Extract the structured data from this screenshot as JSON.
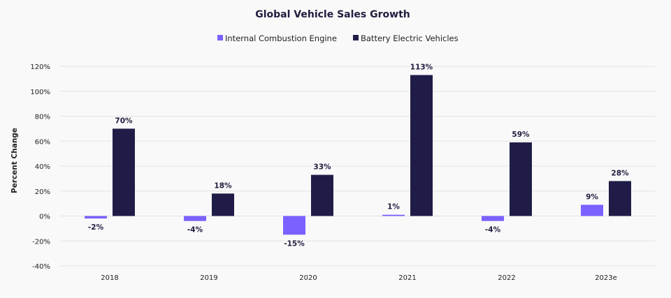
{
  "chart_data": {
    "type": "bar",
    "title": "Global Vehicle Sales Growth",
    "ylabel": "Percent Change",
    "xlabel": "",
    "categories": [
      "2018",
      "2019",
      "2020",
      "2021",
      "2022",
      "2023e"
    ],
    "series": [
      {
        "name": "Internal Combustion Engine",
        "color": "#7b61ff",
        "values": [
          -2,
          -4,
          -15,
          1,
          -4,
          9
        ],
        "labels": [
          "-2%",
          "-4%",
          "-15%",
          "1%",
          "-4%",
          "9%"
        ]
      },
      {
        "name": "Battery Electric Vehicles",
        "color": "#1f1d47",
        "values": [
          70,
          18,
          33,
          113,
          59,
          28
        ],
        "labels": [
          "70%",
          "18%",
          "33%",
          "113%",
          "59%",
          "28%"
        ]
      }
    ],
    "ylim": [
      -40,
      120
    ],
    "yticks": [
      -40,
      -20,
      0,
      20,
      40,
      60,
      80,
      100,
      120
    ],
    "ytick_labels": [
      "-40%",
      "-20%",
      "0%",
      "20%",
      "40%",
      "60%",
      "80%",
      "100%",
      "120%"
    ],
    "grid": true,
    "legend_position": "top-center"
  }
}
